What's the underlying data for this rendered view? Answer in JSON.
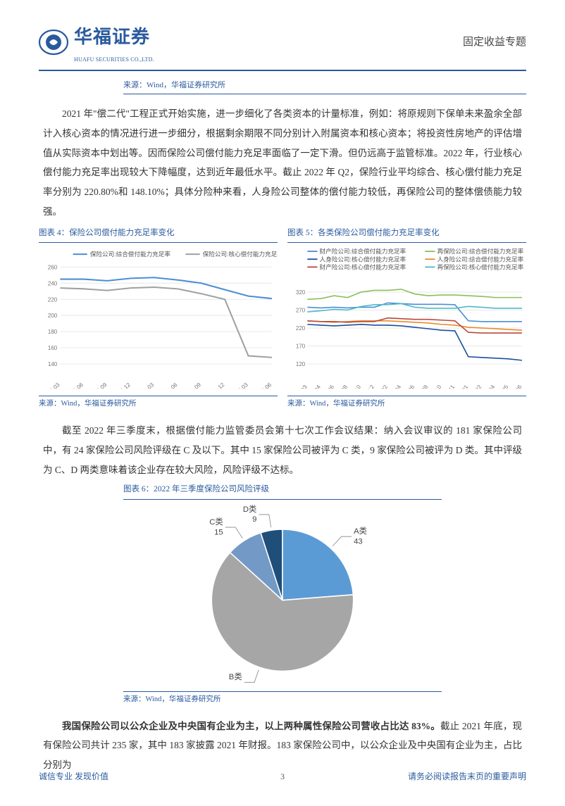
{
  "header": {
    "logo_cn": "华福证券",
    "logo_en": "HUAFU SECURITIES CO.,LTD.",
    "right": "固定收益专题"
  },
  "top_source": "来源：Wind，华福证券研究所",
  "para1": "2021 年\"偿二代\"工程正式开始实施，进一步细化了各类资本的计量标准，例如：将原规则下保单未来盈余全部计入核心资本的情况进行进一步细分，根据剩余期限不同分别计入附属资本和核心资本；将投资性房地产的评估增值从实际资本中划出等。因而保险公司偿付能力充足率面临了一定下滑。但仍远高于监管标准。2022 年，行业核心偿付能力充足率出现较大下降幅度，达到近年最低水平。截止 2022 年 Q2，保险行业平均综合、核心偿付能力充足率分别为 220.80%和 148.10%；具体分险种来看，人身险公司整体的偿付能力较低，再保险公司的整体偿债能力较强。",
  "chart4": {
    "title": "图表 4：保险公司偿付能力充足率变化",
    "source": "来源：Wind，华福证券研究所",
    "type": "line",
    "ylim": [
      140,
      260
    ],
    "ytick_step": 20,
    "x_labels": [
      "2020-03",
      "2020-06",
      "2020-09",
      "2020-12",
      "2021-03",
      "2021-06",
      "2021-09",
      "2021-12",
      "2022-03",
      "2022-06"
    ],
    "series": [
      {
        "name": "保险公司:综合偿付能力充足率",
        "color": "#4a8ed6",
        "values": [
          245,
          245,
          243,
          246,
          247,
          244,
          240,
          232,
          224,
          221
        ]
      },
      {
        "name": "保险公司:核心偿付能力充足率",
        "color": "#a0a0a0",
        "values": [
          234,
          233,
          231,
          234,
          235,
          233,
          227,
          220,
          150,
          148
        ]
      }
    ],
    "grid_color": "#e8e8e8",
    "bg": "#ffffff",
    "line_width": 2
  },
  "chart5": {
    "title": "图表 5：各类保险公司偿付能力充足率变化",
    "source": "来源：Wind，华福证券研究所",
    "type": "line",
    "ylim": [
      120,
      370
    ],
    "yticks": [
      120,
      170,
      220,
      270,
      320
    ],
    "x_labels": [
      "2020-03",
      "2020-04",
      "2020-06",
      "2020-08",
      "2020-10",
      "2020-12",
      "2021-02",
      "2021-04",
      "2021-06",
      "2021-08",
      "2021-10",
      "2021-11",
      "2022-01",
      "2022-02",
      "2022-04",
      "2022-05",
      "2022-06"
    ],
    "series": [
      {
        "name": "财产险公司:综合偿付能力充足率",
        "color": "#4a8ed6",
        "values": [
          278,
          276,
          278,
          276,
          278,
          278,
          290,
          288,
          286,
          286,
          286,
          285,
          240,
          238,
          238,
          238,
          238
        ]
      },
      {
        "name": "再保险公司:综合偿付能力充足率",
        "color": "#8bbf5a",
        "values": [
          300,
          302,
          310,
          305,
          320,
          325,
          325,
          328,
          315,
          310,
          312,
          312,
          310,
          308,
          305,
          305,
          305
        ]
      },
      {
        "name": "人身险公司:核心偿付能力充足率",
        "color": "#1b4f9c",
        "values": [
          230,
          228,
          226,
          228,
          230,
          228,
          228,
          226,
          222,
          218,
          214,
          212,
          140,
          138,
          136,
          134,
          130
        ]
      },
      {
        "name": "人身险公司:综合偿付能力充足率",
        "color": "#e88b2e",
        "values": [
          240,
          238,
          236,
          238,
          240,
          240,
          240,
          238,
          236,
          234,
          230,
          228,
          222,
          220,
          218,
          216,
          214
        ]
      },
      {
        "name": "财产险公司:核心偿付能力充足率",
        "color": "#b94a3d",
        "values": [
          240,
          238,
          238,
          236,
          238,
          238,
          248,
          246,
          244,
          244,
          242,
          240,
          208,
          206,
          206,
          206,
          206
        ]
      },
      {
        "name": "再保险公司:核心偿付能力充足率",
        "color": "#52b8c9",
        "values": [
          265,
          268,
          272,
          270,
          280,
          285,
          285,
          288,
          278,
          275,
          275,
          275,
          280,
          278,
          275,
          275,
          275
        ]
      }
    ],
    "grid_color": "#e8e8e8",
    "line_width": 1.6
  },
  "para2": "截至 2022 年三季度末，根据偿付能力监管委员会第十七次工作会议结果：纳入会议审议的 181 家保险公司中，有 24 家保险公司风险评级在 C 及以下。其中 15 家保险公司被评为 C 类，9 家保险公司被评为 D 类。其中评级为 C、D 两类意味着该企业存在较大风险，风险评级不达标。",
  "chart6": {
    "title": "图表 6：2022 年三季度保险公司风险评级",
    "source": "来源：Wind，华福证券研究所",
    "type": "pie",
    "slices": [
      {
        "label": "A类",
        "value": 43,
        "color": "#5b9bd5"
      },
      {
        "label": "B类",
        "value": 114,
        "color": "#a6a6a6"
      },
      {
        "label": "C类",
        "value": 15,
        "color": "#7399c6"
      },
      {
        "label": "D类",
        "value": 9,
        "color": "#1f4e79"
      }
    ],
    "bg": "#ffffff"
  },
  "para3_prefix_bold": "我国保险公司以公众企业及中央国有企业为主，以上两种属性保险公司营收占比达 83%。",
  "para3_rest": "截止 2021 年底，现有保险公司共计 235 家，其中 183 家披露 2021 年财报。183 家保险公司中，以公众企业及中央国有企业为主，占比分别为",
  "footer": {
    "left": "诚信专业   发现价值",
    "page": "3",
    "right": "请务必阅读报告末页的重要声明"
  }
}
